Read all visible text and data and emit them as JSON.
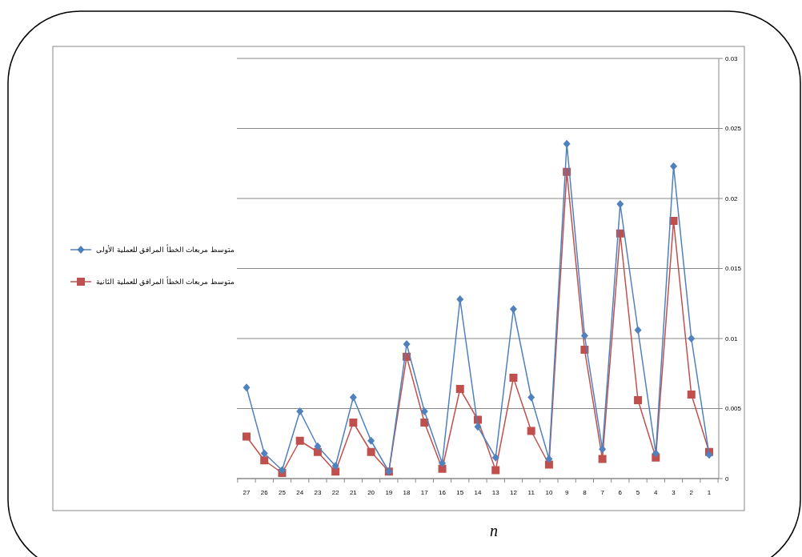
{
  "chart_data": {
    "type": "line",
    "xlabel": "n",
    "categories": [
      "27",
      "26",
      "25",
      "24",
      "23",
      "22",
      "21",
      "20",
      "19",
      "18",
      "17",
      "16",
      "15",
      "14",
      "13",
      "12",
      "11",
      "10",
      "9",
      "8",
      "7",
      "6",
      "5",
      "4",
      "3",
      "2",
      "1"
    ],
    "series": [
      {
        "name": "متوسط مربعات الخطأ المرافق للعملية الأولى",
        "color": "#4f81bd",
        "marker": "diamond",
        "values": [
          0.0065,
          0.0018,
          0.0006,
          0.0048,
          0.0023,
          0.0009,
          0.0058,
          0.0027,
          0.0005,
          0.0096,
          0.0048,
          0.0011,
          0.0128,
          0.0037,
          0.0015,
          0.0121,
          0.0058,
          0.0014,
          0.0239,
          0.0102,
          0.0021,
          0.0196,
          0.0106,
          0.0018,
          0.0223,
          0.01,
          0.0017
        ]
      },
      {
        "name": "متوسط مربعات الخطأ المرافق للعملية الثانية",
        "color": "#c0504d",
        "marker": "square",
        "values": [
          0.003,
          0.0013,
          0.0004,
          0.0027,
          0.0019,
          0.0005,
          0.004,
          0.0019,
          0.0005,
          0.0087,
          0.004,
          0.0007,
          0.0064,
          0.0042,
          0.0006,
          0.0072,
          0.0034,
          0.001,
          0.0219,
          0.0092,
          0.0014,
          0.0175,
          0.0056,
          0.0015,
          0.0184,
          0.006,
          0.0019
        ]
      }
    ],
    "ylim": [
      0,
      0.03
    ],
    "yticks": [
      0,
      0.005,
      0.01,
      0.015,
      0.02,
      0.025,
      0.03
    ],
    "grid": "y",
    "legend": "left"
  }
}
